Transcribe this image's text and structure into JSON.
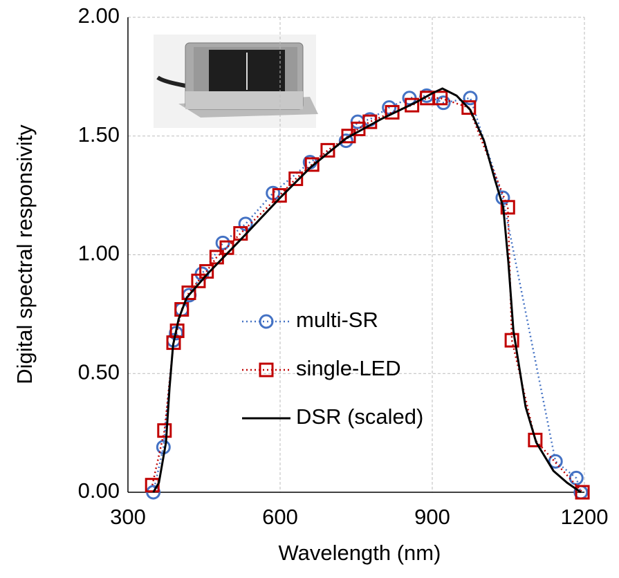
{
  "chart_data": {
    "type": "line",
    "x_label": "Wavelength (nm)",
    "y_label": "Digital spectral responsivity",
    "xlim": [
      300,
      1200
    ],
    "xticks": [
      300,
      600,
      900,
      1200
    ],
    "ylim": [
      0,
      2
    ],
    "yticks": [
      {
        "value": 0,
        "label": "0.00"
      },
      {
        "value": 0.5,
        "label": "0.50"
      },
      {
        "value": 1,
        "label": "1.00"
      },
      {
        "value": 1.5,
        "label": "1.50"
      },
      {
        "value": 2,
        "label": "2.00"
      }
    ],
    "grid": true,
    "series": [
      {
        "name": "multi-SR",
        "color": "#4472c4",
        "marker": "circle",
        "line": "dotted",
        "x": [
          350,
          370,
          390,
          395,
          406,
          421,
          446,
          487,
          532,
          586,
          659,
          730,
          753,
          777,
          815,
          855,
          889,
          922,
          975,
          1039,
          1143,
          1184,
          1193
        ],
        "values": [
          0.0,
          0.19,
          0.64,
          0.67,
          0.77,
          0.83,
          0.92,
          1.05,
          1.13,
          1.26,
          1.39,
          1.48,
          1.56,
          1.57,
          1.62,
          1.66,
          1.67,
          1.64,
          1.66,
          1.24,
          0.13,
          0.06,
          0.0
        ]
      },
      {
        "name": "single-LED",
        "color": "#c00000",
        "marker": "square",
        "line": "dotted",
        "x": [
          348,
          372,
          390,
          397,
          406,
          420,
          439,
          455,
          475,
          495,
          522,
          599,
          631,
          663,
          694,
          735,
          754,
          777,
          821,
          860,
          890,
          916,
          972,
          1049,
          1057,
          1103,
          1196
        ],
        "values": [
          0.03,
          0.26,
          0.63,
          0.68,
          0.77,
          0.84,
          0.89,
          0.93,
          0.99,
          1.03,
          1.09,
          1.25,
          1.32,
          1.38,
          1.44,
          1.5,
          1.53,
          1.56,
          1.6,
          1.63,
          1.66,
          1.66,
          1.62,
          1.2,
          0.64,
          0.22,
          0.0
        ]
      },
      {
        "name": "DSR (scaled)",
        "color": "#000000",
        "marker": "none",
        "line": "solid",
        "x": [
          350,
          361,
          375,
          382,
          389,
          400,
          416,
          457,
          525,
          600,
          661,
          730,
          798,
          866,
          900,
          920,
          948,
          975,
          1002,
          1023,
          1040,
          1050,
          1060,
          1084,
          1105,
          1139,
          1166,
          1193
        ],
        "values": [
          0.0,
          0.04,
          0.21,
          0.44,
          0.62,
          0.73,
          0.82,
          0.92,
          1.07,
          1.24,
          1.37,
          1.49,
          1.57,
          1.64,
          1.68,
          1.7,
          1.67,
          1.61,
          1.48,
          1.32,
          1.2,
          0.97,
          0.68,
          0.36,
          0.21,
          0.09,
          0.04,
          0.0
        ]
      }
    ]
  }
}
